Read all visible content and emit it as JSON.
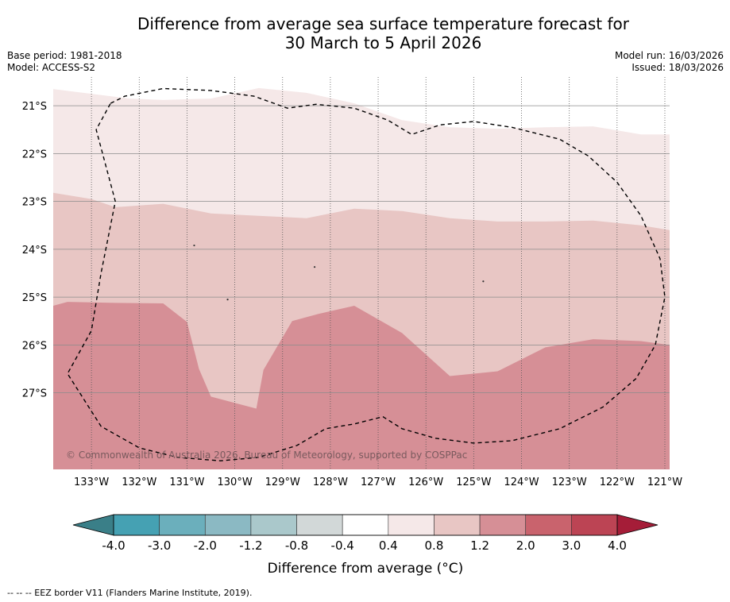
{
  "header": {
    "title_line1": "Difference from average sea surface temperature forecast for",
    "title_line2": "30 March to 5 April 2026",
    "base_period": "Base period: 1981-2018",
    "model": "Model: ACCESS-S2",
    "model_run": "Model run: 16/03/2026",
    "issued": "Issued: 18/03/2026"
  },
  "chart_data": {
    "type": "heatmap",
    "map_extent": {
      "lon": [
        -133.8,
        -120.9
      ],
      "lat": [
        -28.6,
        -20.4
      ]
    },
    "lat_ticks": [
      {
        "value": -21,
        "label": "21°S"
      },
      {
        "value": -22,
        "label": "22°S"
      },
      {
        "value": -23,
        "label": "23°S"
      },
      {
        "value": -24,
        "label": "24°S"
      },
      {
        "value": -25,
        "label": "25°S"
      },
      {
        "value": -26,
        "label": "26°S"
      },
      {
        "value": -27,
        "label": "27°S"
      }
    ],
    "lon_ticks": [
      {
        "value": -133,
        "label": "133°W"
      },
      {
        "value": -132,
        "label": "132°W"
      },
      {
        "value": -131,
        "label": "131°W"
      },
      {
        "value": -130,
        "label": "130°W"
      },
      {
        "value": -129,
        "label": "129°W"
      },
      {
        "value": -128,
        "label": "128°W"
      },
      {
        "value": -127,
        "label": "127°W"
      },
      {
        "value": -126,
        "label": "126°W"
      },
      {
        "value": -125,
        "label": "125°W"
      },
      {
        "value": -124,
        "label": "124°W"
      },
      {
        "value": -123,
        "label": "123°W"
      },
      {
        "value": -122,
        "label": "122°W"
      },
      {
        "value": -121,
        "label": "121°W"
      }
    ],
    "bands": [
      {
        "range": "0.4 to 0.8",
        "color": "#f5e8e8",
        "top_boundary": [
          [
            -133.8,
            -20.65
          ],
          [
            -133,
            -20.75
          ],
          [
            -132.2,
            -20.85
          ],
          [
            -131.5,
            -20.88
          ],
          [
            -130.5,
            -20.85
          ],
          [
            -129.5,
            -20.63
          ],
          [
            -128.5,
            -20.73
          ],
          [
            -127.5,
            -20.95
          ],
          [
            -126.5,
            -21.3
          ],
          [
            -125.5,
            -21.45
          ],
          [
            -124.5,
            -21.48
          ],
          [
            -123.5,
            -21.45
          ],
          [
            -122.5,
            -21.43
          ],
          [
            -121.5,
            -21.6
          ],
          [
            -120.9,
            -21.6
          ]
        ]
      },
      {
        "range": "0.8 to 1.2",
        "color": "#e8c6c4",
        "top_boundary": [
          [
            -133.8,
            -22.82
          ],
          [
            -133,
            -22.95
          ],
          [
            -132.5,
            -23.12
          ],
          [
            -131.5,
            -23.05
          ],
          [
            -130.5,
            -23.25
          ],
          [
            -129.5,
            -23.3
          ],
          [
            -128.5,
            -23.35
          ],
          [
            -127.5,
            -23.15
          ],
          [
            -126.5,
            -23.2
          ],
          [
            -125.5,
            -23.35
          ],
          [
            -124.5,
            -23.42
          ],
          [
            -123.5,
            -23.42
          ],
          [
            -122.5,
            -23.4
          ],
          [
            -121.5,
            -23.5
          ],
          [
            -120.9,
            -23.6
          ]
        ]
      },
      {
        "range": "1.2 to 2.0",
        "color": "#d68f96",
        "top_boundary": [
          [
            -133.8,
            -25.18
          ],
          [
            -133.5,
            -25.1
          ],
          [
            -132.5,
            -25.12
          ],
          [
            -131.5,
            -25.13
          ],
          [
            -131,
            -25.52
          ],
          [
            -130.75,
            -26.5
          ],
          [
            -130.5,
            -27.08
          ],
          [
            -129.55,
            -27.33
          ],
          [
            -129.4,
            -26.52
          ],
          [
            -128.8,
            -25.5
          ],
          [
            -128.25,
            -25.35
          ],
          [
            -127.5,
            -25.18
          ],
          [
            -126.5,
            -25.75
          ],
          [
            -125.5,
            -26.65
          ],
          [
            -124.5,
            -26.55
          ],
          [
            -123.5,
            -26.05
          ],
          [
            -122.5,
            -25.88
          ],
          [
            -121.5,
            -25.92
          ],
          [
            -120.9,
            -26.0
          ]
        ]
      }
    ],
    "eez_boundary": [
      [
        -132.6,
        -20.95
      ],
      [
        -132.3,
        -20.8
      ],
      [
        -131.5,
        -20.64
      ],
      [
        -130.5,
        -20.68
      ],
      [
        -129.6,
        -20.8
      ],
      [
        -128.9,
        -21.05
      ],
      [
        -128.3,
        -20.97
      ],
      [
        -127.5,
        -21.05
      ],
      [
        -126.8,
        -21.3
      ],
      [
        -126.3,
        -21.6
      ],
      [
        -125.7,
        -21.4
      ],
      [
        -125,
        -21.33
      ],
      [
        -124.2,
        -21.45
      ],
      [
        -123.2,
        -21.7
      ],
      [
        -122.6,
        -22.05
      ],
      [
        -122.0,
        -22.6
      ],
      [
        -121.5,
        -23.3
      ],
      [
        -121.1,
        -24.2
      ],
      [
        -121.0,
        -25.0
      ],
      [
        -121.2,
        -26.0
      ],
      [
        -121.6,
        -26.7
      ],
      [
        -122.3,
        -27.3
      ],
      [
        -123.2,
        -27.75
      ],
      [
        -124.2,
        -28.0
      ],
      [
        -125,
        -28.05
      ],
      [
        -125.8,
        -27.95
      ],
      [
        -126.5,
        -27.75
      ],
      [
        -126.9,
        -27.5
      ],
      [
        -127.5,
        -27.65
      ],
      [
        -128.1,
        -27.75
      ],
      [
        -128.7,
        -28.1
      ],
      [
        -129.5,
        -28.35
      ],
      [
        -130.3,
        -28.42
      ],
      [
        -131.2,
        -28.35
      ],
      [
        -132,
        -28.15
      ],
      [
        -132.8,
        -27.7
      ],
      [
        -133.5,
        -26.6
      ],
      [
        -133,
        -25.7
      ],
      [
        -132.8,
        -24.5
      ],
      [
        -132.5,
        -23.0
      ],
      [
        -132.9,
        -21.5
      ],
      [
        -132.6,
        -20.95
      ]
    ],
    "islands": [
      [
        -128.33,
        -24.37
      ],
      [
        -124.8,
        -24.67
      ],
      [
        -130.85,
        -23.92
      ],
      [
        -130.15,
        -25.05
      ]
    ],
    "annotation": "© Commonwealth of Australia 2026, Bureau of Meteorology, supported by COSPPac",
    "colorbar": {
      "label": "Difference from average (°C)",
      "tick_labels": [
        "-4.0",
        "-3.0",
        "-2.0",
        "-1.2",
        "-0.8",
        "-0.4",
        "0.4",
        "0.8",
        "1.2",
        "2.0",
        "3.0",
        "4.0"
      ],
      "colors": [
        "#45a1b3",
        "#6bafbc",
        "#8bb9c3",
        "#aac8cb",
        "#d2d8d8",
        "#ffffff",
        "#f5e8e8",
        "#e8c6c4",
        "#d68f96",
        "#c9636d",
        "#bc4454"
      ],
      "extend_low_color": "#3a7f88",
      "extend_high_color": "#a51d38"
    }
  },
  "footer": {
    "note": "--  --  -- EEZ border V11 (Flanders Marine Institute, 2019)."
  }
}
